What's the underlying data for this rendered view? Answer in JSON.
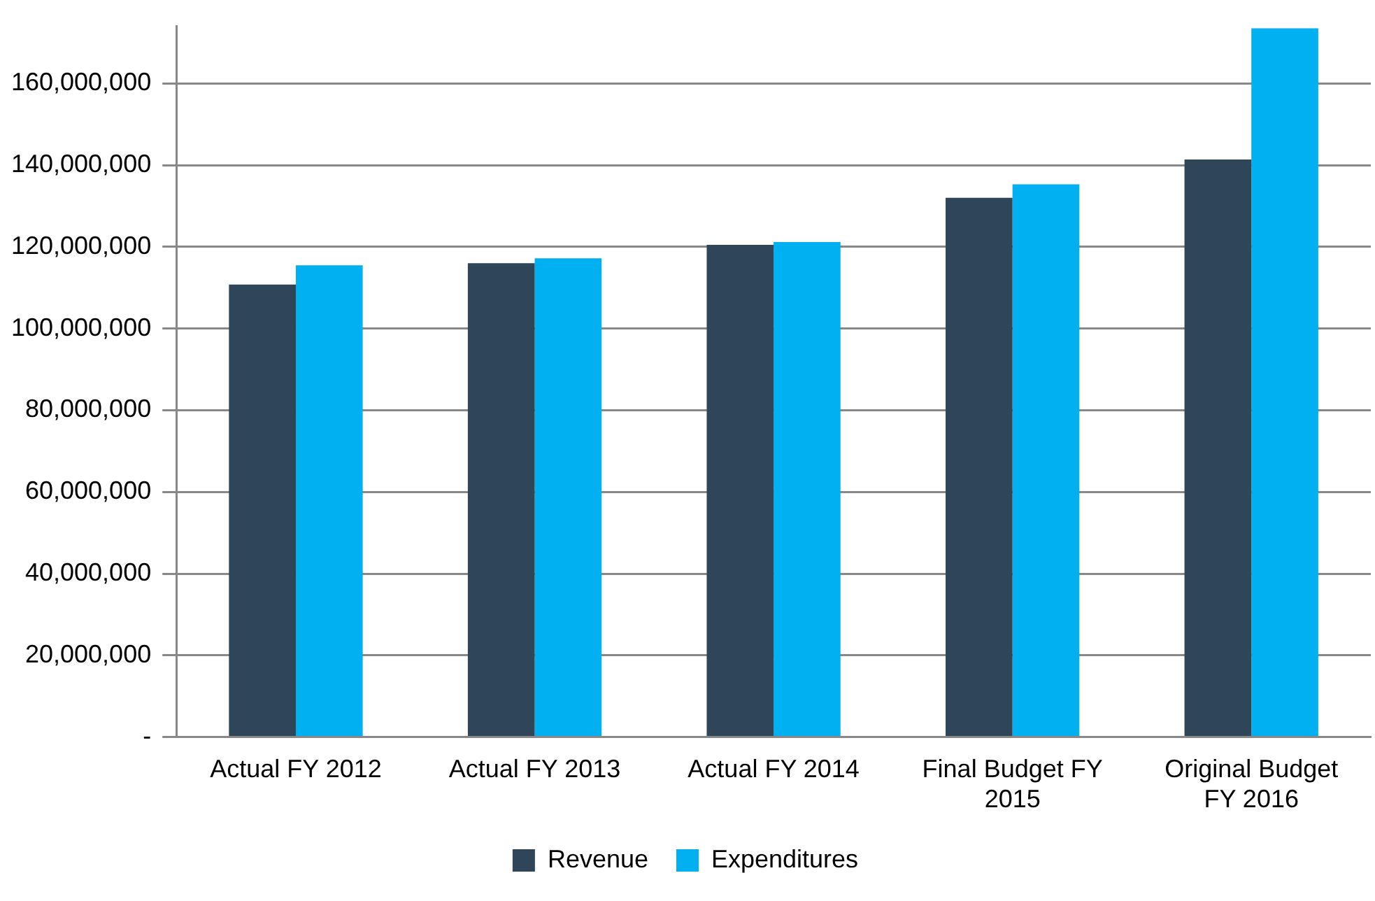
{
  "chart_data": {
    "type": "bar",
    "categories": [
      "Actual FY 2012",
      "Actual FY 2013",
      "Actual FY 2014",
      "Final Budget FY 2015",
      "Original Budget FY 2016"
    ],
    "series": [
      {
        "name": "Revenue",
        "color": "#2f4558",
        "values": [
          110800000,
          116000000,
          120500000,
          132000000,
          141400000
        ]
      },
      {
        "name": "Expenditures",
        "color": "#00b0f0",
        "values": [
          115500000,
          117200000,
          121200000,
          135300000,
          173500000
        ]
      }
    ],
    "ylim": [
      0,
      174000000
    ],
    "yticks": [
      {
        "value": 0,
        "label": "-"
      },
      {
        "value": 20000000,
        "label": "20,000,000"
      },
      {
        "value": 40000000,
        "label": "40,000,000"
      },
      {
        "value": 60000000,
        "label": "60,000,000"
      },
      {
        "value": 80000000,
        "label": "80,000,000"
      },
      {
        "value": 100000000,
        "label": "100,000,000"
      },
      {
        "value": 120000000,
        "label": "120,000,000"
      },
      {
        "value": 140000000,
        "label": "140,000,000"
      },
      {
        "value": 160000000,
        "label": "160,000,000"
      }
    ],
    "grid": "y",
    "legend": "bottom"
  }
}
